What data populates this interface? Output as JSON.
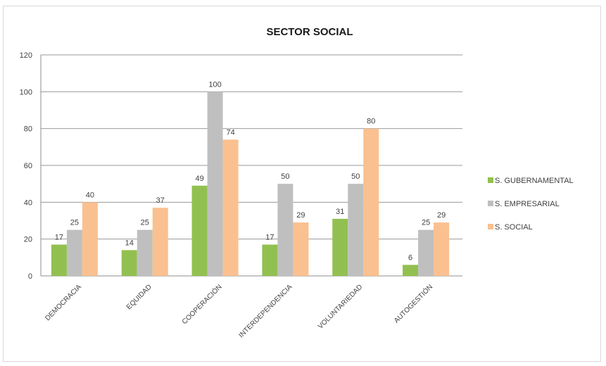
{
  "chart_data": {
    "type": "bar",
    "title": "SECTOR SOCIAL",
    "categories": [
      "DEMOCRACIA",
      "EQUIDAD",
      "COOPERACIÓN",
      "INTERDEPENDENCIA",
      "VOLUNTARIEDAD",
      "AUTOGESTIÓN"
    ],
    "series": [
      {
        "name": "S. GUBERNAMENTAL",
        "color": "#92c050",
        "values": [
          17,
          14,
          49,
          17,
          31,
          6
        ]
      },
      {
        "name": "S. EMPRESARIAL",
        "color": "#bfbfbf",
        "values": [
          25,
          25,
          100,
          50,
          50,
          25
        ]
      },
      {
        "name": "S. SOCIAL",
        "color": "#fac090",
        "values": [
          40,
          37,
          74,
          29,
          80,
          29
        ]
      }
    ],
    "ylim": [
      0,
      120
    ],
    "yticks": [
      0,
      20,
      40,
      60,
      80,
      100,
      120
    ],
    "grid": true,
    "legend_position": "right"
  }
}
